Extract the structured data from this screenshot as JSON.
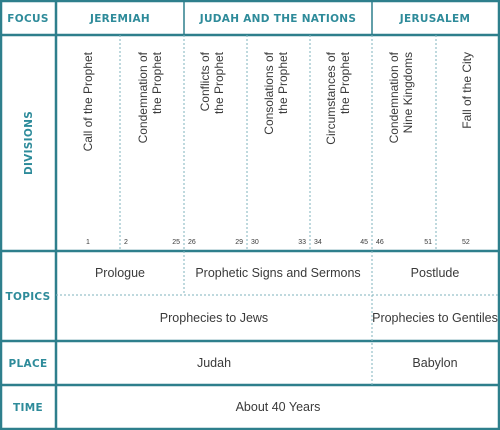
{
  "row_labels": {
    "focus": "FOCUS",
    "divisions": "DIVISIONS",
    "topics": "TOPICS",
    "place": "PLACE",
    "time": "TIME"
  },
  "focus": [
    {
      "id": "jeremiah",
      "label": "JEREMIAH"
    },
    {
      "id": "judah-nations",
      "label": "JUDAH AND THE NATIONS"
    },
    {
      "id": "jerusalem",
      "label": "JERUSALEM"
    }
  ],
  "divisions": [
    {
      "id": "call",
      "lines": [
        "Call of the Prophet"
      ],
      "start": "1",
      "end": ""
    },
    {
      "id": "condemnation",
      "lines": [
        "Condemnation of",
        "the Prophet"
      ],
      "start": "2",
      "end": "25"
    },
    {
      "id": "conflicts",
      "lines": [
        "Conflicts of",
        "the Prophet"
      ],
      "start": "26",
      "end": "29"
    },
    {
      "id": "consolations",
      "lines": [
        "Consolations of",
        "the Prophet"
      ],
      "start": "30",
      "end": "33"
    },
    {
      "id": "circumstances",
      "lines": [
        "Circumstances of",
        "the Prophet"
      ],
      "start": "34",
      "end": "45"
    },
    {
      "id": "nine-kingdoms",
      "lines": [
        "Condemnation of",
        "Nine Kingdoms"
      ],
      "start": "46",
      "end": "51"
    },
    {
      "id": "fall",
      "lines": [
        "Fall of the City"
      ],
      "start": "",
      "end": "52"
    }
  ],
  "topics_row1": [
    "Prologue",
    "Prophetic Signs and Sermons",
    "Postlude"
  ],
  "topics_row2": [
    "Prophecies to Jews",
    "Prophecies to Gentiles"
  ],
  "place": [
    "Judah",
    "Babylon"
  ],
  "time": "About 40 Years"
}
